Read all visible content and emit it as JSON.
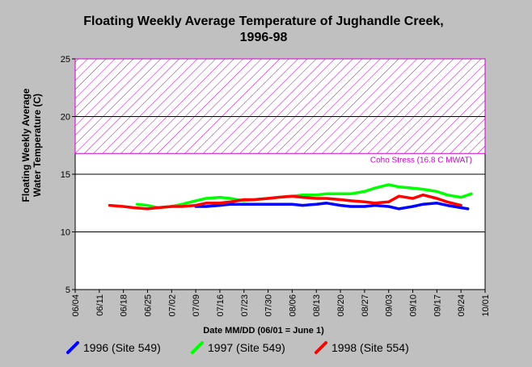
{
  "chart_data": {
    "type": "line",
    "title_line1": "Floating Weekly Average Temperature of Jughandle Creek,",
    "title_line2": "1996-98",
    "ylabel_line1": "Floating Weekly Average",
    "ylabel_line2": "Water Temperature (C)",
    "xlabel": "Date MM/DD (06/01 = June 1)",
    "ylim": [
      5,
      25
    ],
    "xlim": [
      "06/04",
      "10/01"
    ],
    "y_ticks": [
      "25",
      "20",
      "15",
      "10",
      "5"
    ],
    "y_tick_values": [
      25,
      20,
      15,
      10,
      5
    ],
    "x_ticks": [
      "06/04",
      "06/11",
      "06/18",
      "06/25",
      "07/02",
      "07/09",
      "07/16",
      "07/23",
      "07/30",
      "08/06",
      "08/13",
      "08/20",
      "08/27",
      "09/03",
      "09/10",
      "09/17",
      "09/24",
      "10/01"
    ],
    "grid": true,
    "stress_band": {
      "label": "Coho Stress (16.8 C MWAT)",
      "from": 16.8,
      "to": 25,
      "color": "#cc00cc"
    },
    "series": [
      {
        "name": "1996 (Site 549)",
        "color": "#0000ff",
        "x": [
          35,
          38,
          42,
          45,
          49,
          52,
          56,
          59,
          63,
          66,
          70,
          73,
          77,
          80,
          84,
          87,
          91,
          94,
          98,
          101,
          105,
          108,
          112,
          114
        ],
        "y": [
          12.2,
          12.2,
          12.3,
          12.4,
          12.4,
          12.4,
          12.4,
          12.4,
          12.4,
          12.3,
          12.4,
          12.5,
          12.3,
          12.2,
          12.2,
          12.3,
          12.2,
          12.0,
          12.2,
          12.4,
          12.5,
          12.3,
          12.1,
          12.0
        ]
      },
      {
        "name": "1997 (Site 549)",
        "color": "#00ff00",
        "x": [
          18,
          21,
          24,
          28,
          31,
          35,
          38,
          42,
          45,
          49,
          52,
          56,
          59,
          63,
          66,
          70,
          73,
          77,
          80,
          84,
          87,
          91,
          94,
          98,
          101,
          105,
          108,
          112,
          115
        ],
        "y": [
          12.4,
          12.3,
          12.1,
          12.2,
          12.4,
          12.7,
          12.9,
          13.0,
          12.9,
          12.7,
          12.8,
          12.9,
          13.0,
          13.1,
          13.2,
          13.2,
          13.3,
          13.3,
          13.3,
          13.5,
          13.8,
          14.1,
          13.9,
          13.8,
          13.7,
          13.5,
          13.2,
          13.0,
          13.3
        ]
      },
      {
        "name": "1998 (Site 554)",
        "color": "#ff0000",
        "x": [
          10,
          14,
          17,
          21,
          24,
          28,
          31,
          35,
          38,
          42,
          45,
          49,
          52,
          56,
          59,
          63,
          66,
          70,
          73,
          77,
          80,
          84,
          87,
          91,
          94,
          98,
          101,
          105,
          108,
          112
        ],
        "y": [
          12.3,
          12.2,
          12.1,
          12.0,
          12.1,
          12.2,
          12.2,
          12.3,
          12.5,
          12.5,
          12.6,
          12.8,
          12.8,
          12.9,
          13.0,
          13.1,
          13.0,
          12.9,
          12.9,
          12.8,
          12.7,
          12.6,
          12.5,
          12.6,
          13.1,
          12.9,
          13.2,
          12.9,
          12.6,
          12.3
        ]
      }
    ]
  }
}
